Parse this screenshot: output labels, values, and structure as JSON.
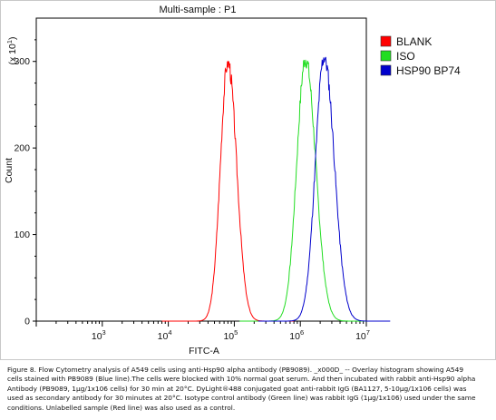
{
  "chart_data": {
    "type": "line",
    "title": "Multi-sample : P1",
    "xlabel": "FITC-A",
    "ylabel": "Count",
    "y_multiplier": "(x 10",
    "y_multiplier_exp": "1",
    "y_multiplier_close": ")",
    "x_scale": "log",
    "xlim": [
      100,
      10000000
    ],
    "ylim": [
      0,
      350
    ],
    "y_ticks": [
      {
        "value": 0,
        "label": "0"
      },
      {
        "value": 100,
        "label": "100"
      },
      {
        "value": 200,
        "label": "200"
      },
      {
        "value": 300,
        "label": "300"
      }
    ],
    "x_ticks": [
      {
        "value": 1000,
        "base": "10",
        "exp": "3"
      },
      {
        "value": 10000,
        "base": "10",
        "exp": "4"
      },
      {
        "value": 100000,
        "base": "10",
        "exp": "5"
      },
      {
        "value": 1000000,
        "base": "10",
        "exp": "6"
      },
      {
        "value": 10000000,
        "base": "10",
        "exp": "7"
      }
    ],
    "grid": false,
    "legend_position": "top-right",
    "series": [
      {
        "name": "BLANK",
        "color": "#ff0000",
        "peak_x": 80000,
        "peak_y": 300,
        "spread": 0.12,
        "seed": 3
      },
      {
        "name": "ISO",
        "color": "#22dd22",
        "peak_x": 1200000,
        "peak_y": 303,
        "spread": 0.14,
        "seed": 7
      },
      {
        "name": "HSP90 BP74",
        "color": "#0000cc",
        "peak_x": 2300000,
        "peak_y": 305,
        "spread": 0.14,
        "seed": 11
      }
    ]
  },
  "caption": "Figure 8. Flow Cytometry analysis of A549 cells using anti-Hsp90 alpha antibody (PB9089). _x000D_ -- Overlay histogram showing A549 cells stained with PB9089 (Blue line).The cells were blocked with 10% normal goat serum. And then incubated with rabbit anti-Hsp90 alpha Antibody (PB9089, 1μg/1x106 cells) for 30 min at 20°C. DyLight®488 conjugated goat anti-rabbit IgG (BA1127, 5-10μg/1x106 cells) was used as secondary antibody for 30 minutes at 20°C. Isotype control antibody (Green line) was rabbit IgG (1μg/1x106) used under the same conditions. Unlabelled sample (Red line) was also used as a control."
}
